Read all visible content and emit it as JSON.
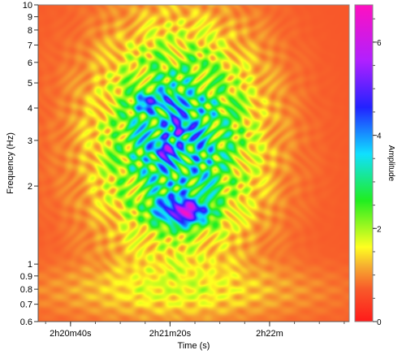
{
  "chart_data": {
    "type": "heatmap",
    "title": "",
    "xlabel": "Time (s)",
    "ylabel": "Frequency (Hz)",
    "colorbar_label": "Amplitude",
    "x_tick_labels": [
      "2h20m40s",
      "2h21m20s",
      "2h22m"
    ],
    "x_tick_values_s": [
      8440,
      8480,
      8520
    ],
    "xlim_s": [
      8427,
      8552
    ],
    "y_scale": "log",
    "ylim": [
      0.6,
      10
    ],
    "y_major_ticks": [
      {
        "value": 0.6,
        "label": "0.6"
      },
      {
        "value": 0.7,
        "label": "0.7"
      },
      {
        "value": 0.8,
        "label": "0.8"
      },
      {
        "value": 0.9,
        "label": "0.9"
      },
      {
        "value": 1,
        "label": "1"
      },
      {
        "value": 2,
        "label": "2"
      },
      {
        "value": 3,
        "label": "3"
      },
      {
        "value": 4,
        "label": "4"
      },
      {
        "value": 5,
        "label": "5"
      },
      {
        "value": 6,
        "label": "6"
      },
      {
        "value": 7,
        "label": "7"
      },
      {
        "value": 8,
        "label": "8"
      },
      {
        "value": 9,
        "label": "9"
      },
      {
        "value": 10,
        "label": "10"
      }
    ],
    "colorbar_range": [
      0,
      6.8
    ],
    "colorbar_ticks": [
      {
        "value": 0,
        "label": "0"
      },
      {
        "value": 2,
        "label": "2"
      },
      {
        "value": 4,
        "label": "4"
      },
      {
        "value": 6,
        "label": "6"
      }
    ],
    "colormap_stops": [
      {
        "value": 0,
        "color": "#ff1a1a"
      },
      {
        "value": 0.7,
        "color": "#f85a2a"
      },
      {
        "value": 1.2,
        "color": "#f6b030"
      },
      {
        "value": 1.6,
        "color": "#ffff20"
      },
      {
        "value": 2.6,
        "color": "#20ee20"
      },
      {
        "value": 3.6,
        "color": "#10e0ff"
      },
      {
        "value": 4.6,
        "color": "#2222ff"
      },
      {
        "value": 5.6,
        "color": "#b020ff"
      },
      {
        "value": 6.8,
        "color": "#ff10c0"
      }
    ],
    "amplitude_envelope": {
      "background_level": 0.7,
      "main_energy": {
        "center_time_s": 8483,
        "center_freq_hz": 3.0,
        "peak_amplitude": 4.5
      },
      "strong_patch": {
        "center_time_s": 8485,
        "center_freq_hz": 1.6,
        "peak_amplitude": 6.2
      },
      "secondary_patches": [
        {
          "time_s": 8470,
          "freq_hz": 4.2,
          "amplitude": 5.2
        },
        {
          "time_s": 8478,
          "freq_hz": 4.3,
          "amplitude": 5.0
        },
        {
          "time_s": 8477,
          "freq_hz": 2.8,
          "amplitude": 5.0
        },
        {
          "time_s": 8484,
          "freq_hz": 3.4,
          "amplitude": 4.7
        }
      ],
      "low_band": {
        "freq_range_hz": [
          0.65,
          0.95
        ],
        "amplitude": 1.4
      }
    },
    "grid": false,
    "legend": "colorbar-right"
  }
}
